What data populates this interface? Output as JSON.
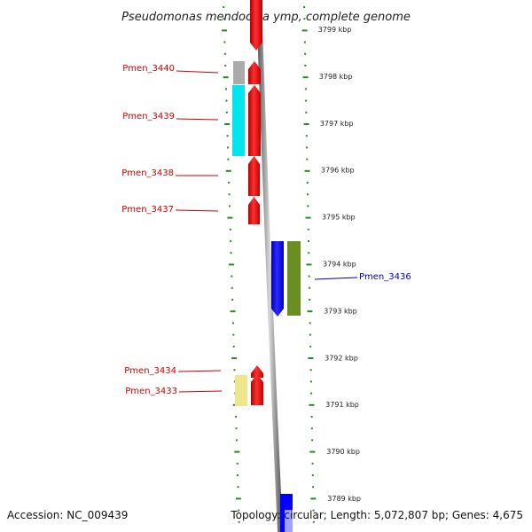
{
  "title": "Pseudomonas mendocina ymp, complete genome",
  "ticks": [
    "3799 kbp",
    "3798 kbp",
    "3797 kbp",
    "3796 kbp",
    "3795 kbp",
    "3794 kbp",
    "3793 kbp",
    "3792 kbp",
    "3791 kbp",
    "3790 kbp",
    "3789 kbp"
  ],
  "genes": [
    {
      "label": "Pmen_3440",
      "strand": "forward",
      "color": "#ff0000"
    },
    {
      "label": "Pmen_3439",
      "strand": "forward",
      "color": "#ff0000",
      "feature_color": "#00e5ee"
    },
    {
      "label": "Pmen_3438",
      "strand": "forward",
      "color": "#ff0000"
    },
    {
      "label": "Pmen_3437",
      "strand": "forward",
      "color": "#ff0000"
    },
    {
      "label": "Pmen_3436",
      "strand": "reverse",
      "color": "#0000ff",
      "feature_color": "#6b8e23"
    },
    {
      "label": "Pmen_3434",
      "strand": "forward",
      "color": "#ff0000"
    },
    {
      "label": "Pmen_3433",
      "strand": "forward",
      "color": "#ff0000",
      "feature_color": "#eee68c"
    }
  ],
  "colors": {
    "forward": "#ff0000",
    "reverse": "#0000ff",
    "label_forward": "#cc0000",
    "label_reverse": "#0000aa",
    "backbone": "#888888",
    "tick": "#228b22",
    "extra_cds": "#aaaaaa"
  },
  "footer": {
    "accession": "Accession: NC_009439",
    "summary": "Topology: circular; Length: 5,072,807 bp; Genes: 4,675"
  }
}
